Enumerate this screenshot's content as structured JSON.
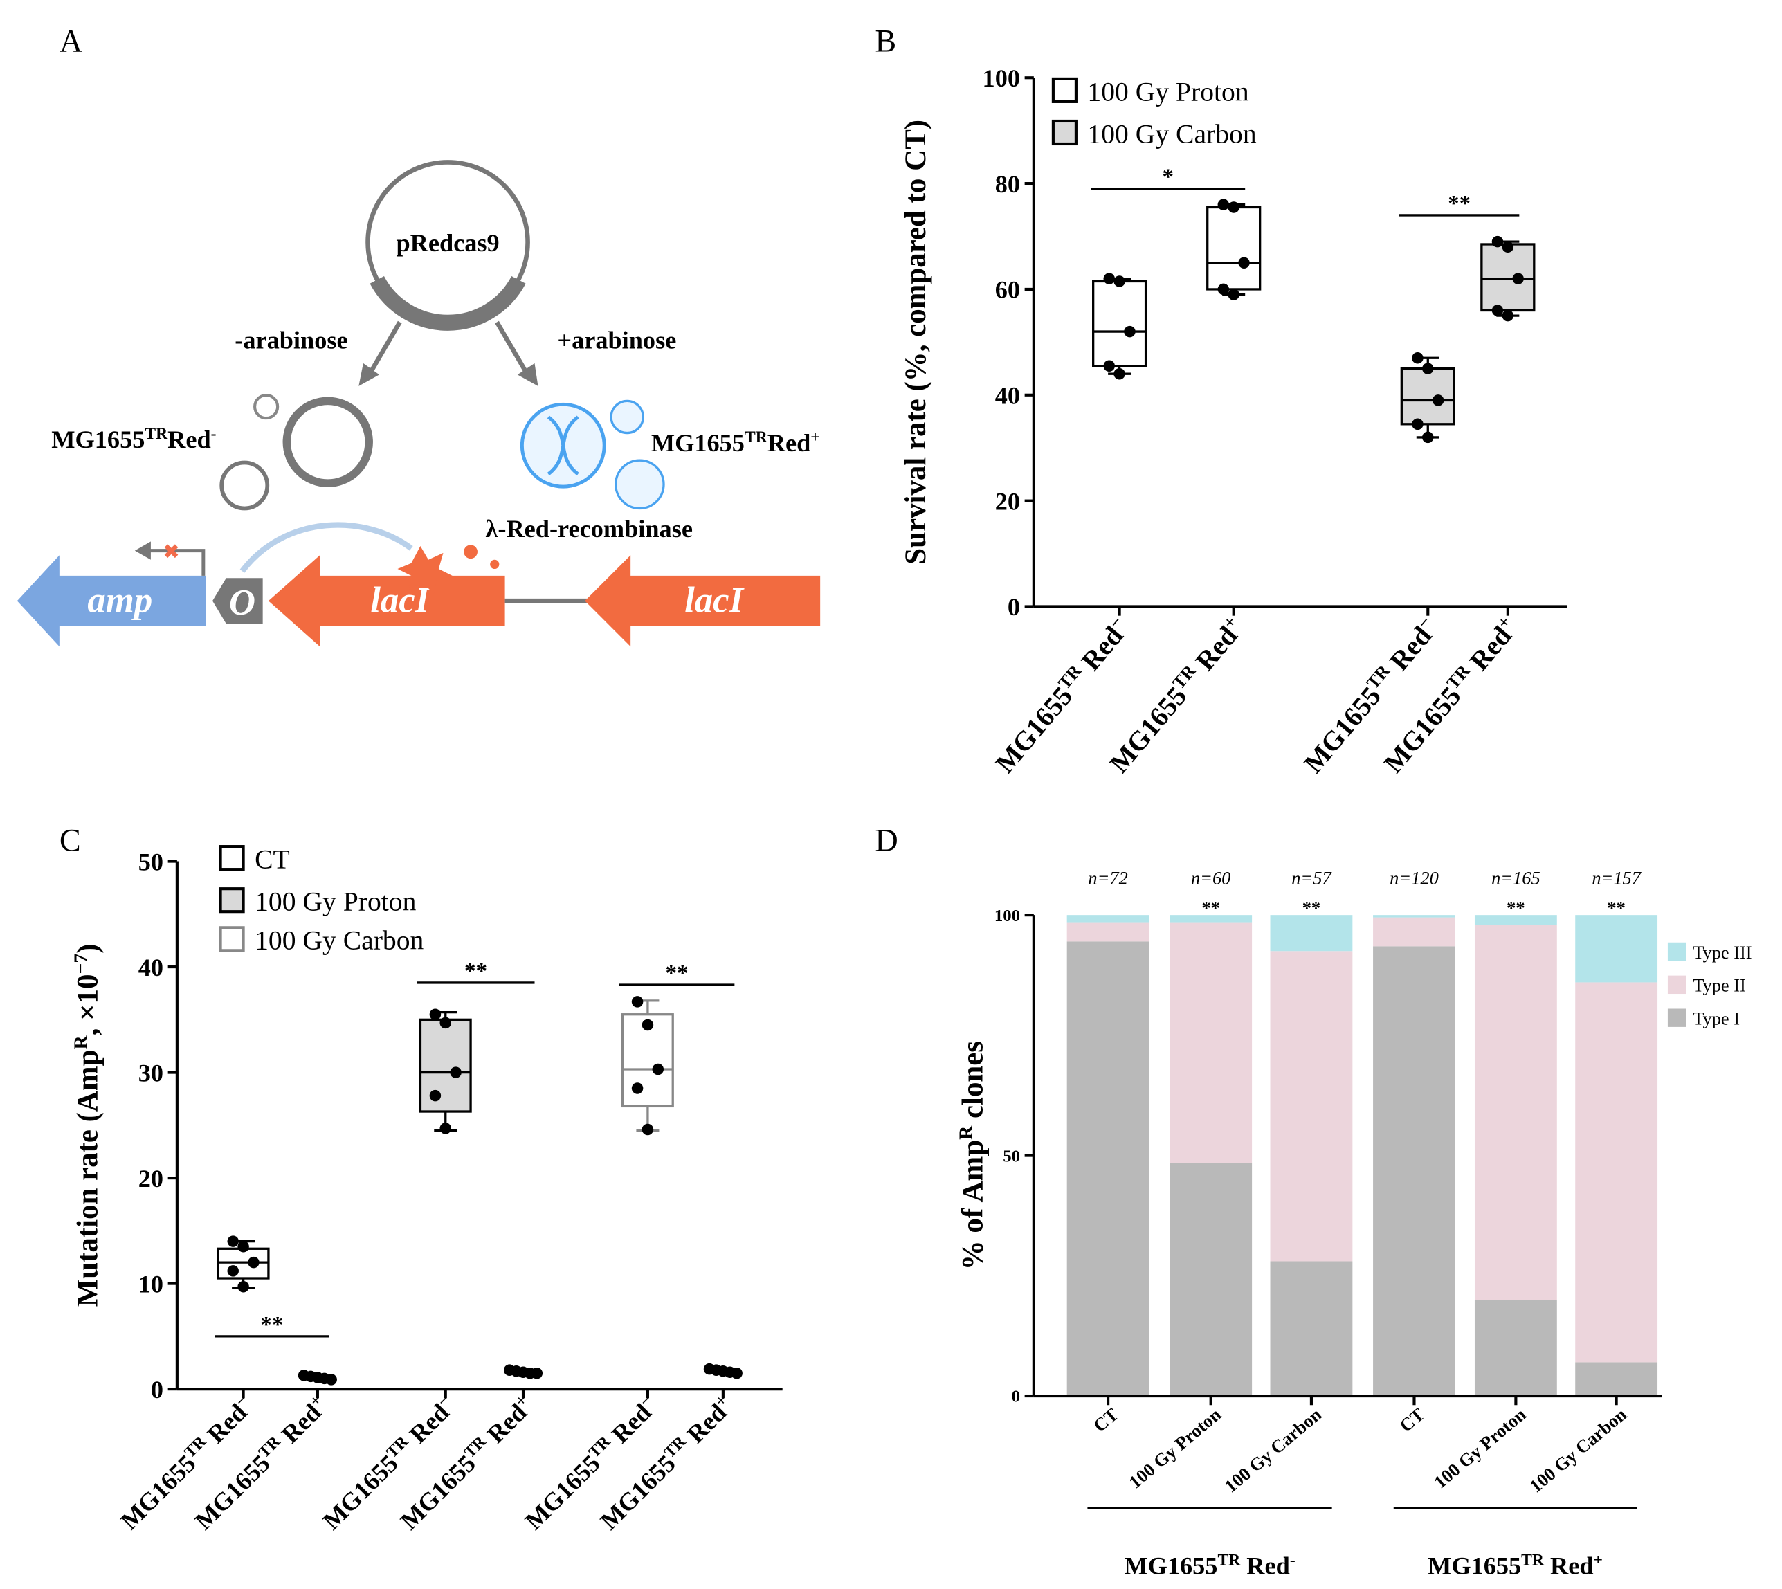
{
  "diagram": {
    "letter": "A",
    "plasmid": "pRedcas9",
    "minus_arabinose": "-arabinose",
    "plus_arabinose": "+arabinose",
    "left_strain": [
      "MG1655",
      "TR",
      "Red",
      "-"
    ],
    "right_strain": [
      "MG1655",
      "TR",
      "Red",
      "+"
    ],
    "recombinase": "λ-Red-recombinase",
    "amp": "amp",
    "operator": "O",
    "lacI_left": "lacI",
    "lacI_right": "lacI"
  },
  "chart_data": [
    {
      "type": "box",
      "title": "B",
      "ylabel": [
        "Survival rate (%, compared to CT)"
      ],
      "ylim": [
        0,
        100
      ],
      "yticks": [
        0,
        20,
        40,
        60,
        80,
        100
      ],
      "legend": [
        {
          "name": "100 Gy Proton",
          "color": "#ffffff",
          "stroke": "#000000"
        },
        {
          "name": "100 Gy Carbon",
          "color": "#d9d9d9",
          "stroke": "#000000"
        }
      ],
      "categories": [
        [
          "MG1655",
          "TR",
          " Red",
          "−"
        ],
        [
          "MG1655",
          "TR",
          " Red",
          "+"
        ],
        [
          "MG1655",
          "TR",
          " Red",
          "−"
        ],
        [
          "MG1655",
          "TR",
          " Red",
          "+"
        ]
      ],
      "boxes": [
        {
          "color": "#ffffff",
          "stroke": "#000000",
          "min": 44,
          "q1": 45.5,
          "median": 52,
          "q3": 61.5,
          "max": 62,
          "points": [
            62,
            61.5,
            52,
            45.5,
            44
          ]
        },
        {
          "color": "#ffffff",
          "stroke": "#000000",
          "min": 59,
          "q1": 60,
          "median": 65,
          "q3": 75.5,
          "max": 76,
          "points": [
            76,
            75.5,
            65,
            60,
            59
          ]
        },
        {
          "color": "#d9d9d9",
          "stroke": "#000000",
          "min": 32,
          "q1": 34.5,
          "median": 39,
          "q3": 45,
          "max": 47,
          "points": [
            47,
            45,
            39,
            34.5,
            32
          ]
        },
        {
          "color": "#d9d9d9",
          "stroke": "#000000",
          "min": 55,
          "q1": 56,
          "median": 62,
          "q3": 68.5,
          "max": 69,
          "points": [
            69,
            68,
            62,
            56,
            55
          ]
        }
      ],
      "significance": [
        {
          "label": "*",
          "y": 79
        },
        {
          "label": "**",
          "y": 74
        }
      ]
    },
    {
      "type": "box",
      "title": "C",
      "ylabel": [
        "Mutation rate (Amp",
        "R",
        ", ×10",
        "−7",
        ")"
      ],
      "ylim": [
        0,
        50
      ],
      "yticks": [
        0,
        10,
        20,
        30,
        40,
        50
      ],
      "legend": [
        {
          "name": "CT",
          "color": "#ffffff",
          "stroke": "#000000"
        },
        {
          "name": "100 Gy Proton",
          "color": "#d9d9d9",
          "stroke": "#000000"
        },
        {
          "name": "100 Gy Carbon",
          "color": "#ffffff",
          "stroke": "#888888"
        }
      ],
      "categories": [
        [
          "MG1655",
          "TR",
          " Red",
          "−"
        ],
        [
          "MG1655",
          "TR",
          " Red",
          "+"
        ],
        [
          "MG1655",
          "TR",
          " Red",
          "−"
        ],
        [
          "MG1655",
          "TR",
          " Red",
          "+"
        ],
        [
          "MG1655",
          "TR",
          " Red",
          "−"
        ],
        [
          "MG1655",
          "TR",
          " Red",
          "+"
        ]
      ],
      "boxes": [
        {
          "color": "#ffffff",
          "stroke": "#000000",
          "min": 9.6,
          "q1": 10.5,
          "median": 12,
          "q3": 13.3,
          "max": 14,
          "points": [
            14,
            13.5,
            12,
            11.2,
            9.7
          ]
        },
        {
          "points": [
            1.3,
            1.2,
            1.1,
            1.0,
            0.9
          ]
        },
        {
          "color": "#d9d9d9",
          "stroke": "#000000",
          "min": 24.5,
          "q1": 26.3,
          "median": 30,
          "q3": 35,
          "max": 35.7,
          "points": [
            35.5,
            34.7,
            30,
            27.8,
            24.7
          ]
        },
        {
          "points": [
            1.8,
            1.7,
            1.6,
            1.5,
            1.5
          ]
        },
        {
          "color": "#ffffff",
          "stroke": "#888888",
          "min": 24.5,
          "q1": 26.8,
          "median": 30.3,
          "q3": 35.5,
          "max": 36.8,
          "points": [
            36.7,
            34.5,
            30.3,
            28.5,
            24.6
          ]
        },
        {
          "points": [
            1.9,
            1.8,
            1.7,
            1.6,
            1.5
          ]
        }
      ],
      "significance": [
        {
          "label": "**",
          "y": 5
        },
        {
          "label": "**",
          "y": 38.5
        },
        {
          "label": "**",
          "y": 38.3
        }
      ]
    },
    {
      "type": "stacked_bar",
      "title": "D",
      "ylabel": [
        "% of Amp",
        "R",
        " clones"
      ],
      "ylim": [
        0,
        100
      ],
      "yticks": [
        0,
        50,
        100
      ],
      "categories": [
        "CT",
        "100 Gy Proton",
        "100 Gy Carbon",
        "CT",
        "100 Gy Proton",
        "100 Gy Carbon"
      ],
      "counts": [
        "n=72",
        "n=60",
        "n=57",
        "n=120",
        "n=165",
        "n=157"
      ],
      "annotations": [
        null,
        "**",
        "**",
        null,
        "**",
        "**"
      ],
      "groups": [
        [
          "MG1655",
          "TR",
          " Red",
          "-"
        ],
        [
          "MG1655",
          "TR",
          " Red",
          "+"
        ]
      ],
      "series": [
        {
          "name": "Type I",
          "color": "#b9b9b9",
          "values": [
            94.5,
            48.5,
            28,
            93.5,
            20,
            7
          ]
        },
        {
          "name": "Type II",
          "color": "#ecd5dc",
          "values": [
            4,
            50,
            64.5,
            6,
            78,
            79
          ]
        },
        {
          "name": "Type III",
          "color": "#b3e4ea",
          "values": [
            1.5,
            1.5,
            7.5,
            0.5,
            2,
            14
          ]
        }
      ]
    }
  ]
}
